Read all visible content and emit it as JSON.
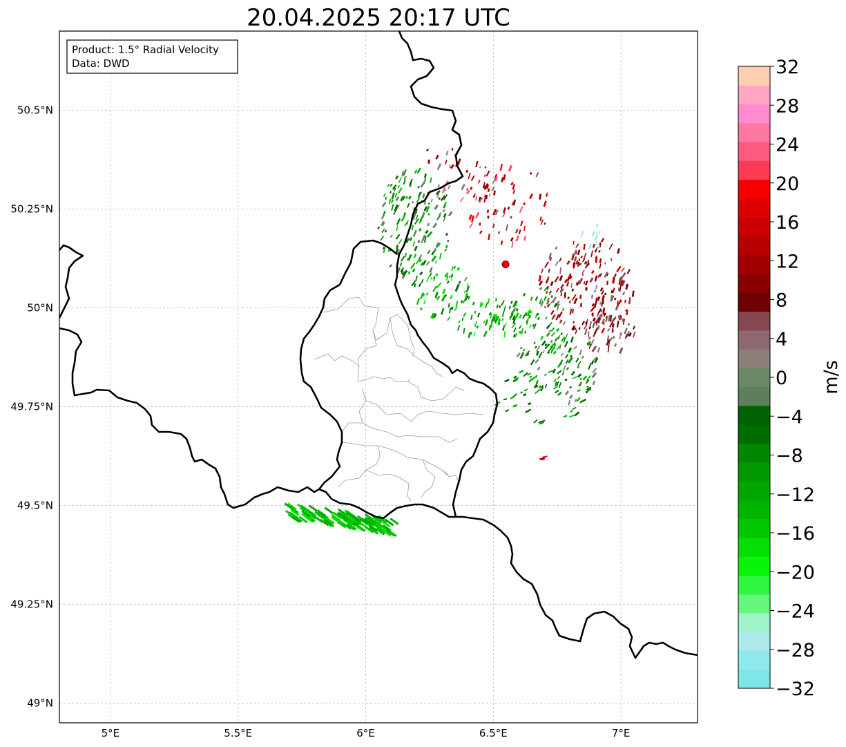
{
  "title": "20.04.2025 20:17 UTC",
  "info": {
    "product": "Product: 1.5° Radial Velocity",
    "source": "Data: DWD"
  },
  "map": {
    "lon_range": [
      4.8,
      7.3
    ],
    "lat_range": [
      48.95,
      50.7
    ],
    "lon_ticks": [
      {
        "value": 5.0,
        "label": "5°E"
      },
      {
        "value": 5.5,
        "label": "5.5°E"
      },
      {
        "value": 6.0,
        "label": "6°E"
      },
      {
        "value": 6.5,
        "label": "6.5°E"
      },
      {
        "value": 7.0,
        "label": "7°E"
      }
    ],
    "lat_ticks": [
      {
        "value": 49.0,
        "label": "49°N"
      },
      {
        "value": 49.25,
        "label": "49.25°N"
      },
      {
        "value": 49.5,
        "label": "49.5°N"
      },
      {
        "value": 49.75,
        "label": "49.75°N"
      },
      {
        "value": 50.0,
        "label": "50°N"
      },
      {
        "value": 50.25,
        "label": "50.25°N"
      },
      {
        "value": 50.5,
        "label": "50.5°N"
      }
    ],
    "gridlines": true,
    "radar_site": {
      "lon": 6.548,
      "lat": 50.11,
      "color": "#ff0000"
    }
  },
  "colorbar": {
    "label": "m/s",
    "min": -32,
    "max": 32,
    "ticks": [
      -32,
      -28,
      -24,
      -20,
      -16,
      -12,
      -8,
      -4,
      0,
      4,
      8,
      12,
      16,
      20,
      24,
      28,
      32
    ],
    "tick_labels": [
      "−32",
      "−28",
      "−24",
      "−20",
      "−16",
      "−12",
      "−8",
      "−4",
      "0",
      "4",
      "8",
      "12",
      "16",
      "20",
      "24",
      "28",
      "32"
    ],
    "colors": [
      "#7fe6e8",
      "#90eaec",
      "#ade9eb",
      "#9ef3c8",
      "#64f77c",
      "#2ff63f",
      "#08f508",
      "#03df03",
      "#01c701",
      "#01b401",
      "#00a600",
      "#009700",
      "#018601",
      "#006d00",
      "#006200",
      "#5c8059",
      "#6a8767",
      "#8c7f79",
      "#8d6871",
      "#854750",
      "#6d0000",
      "#880000",
      "#a20000",
      "#b80000",
      "#cc0000",
      "#de0000",
      "#f50000",
      "#fe3b57",
      "#fd5a80",
      "#fe78a4",
      "#fe8ad0",
      "#fea6c4",
      "#ffcdb1"
    ]
  }
}
